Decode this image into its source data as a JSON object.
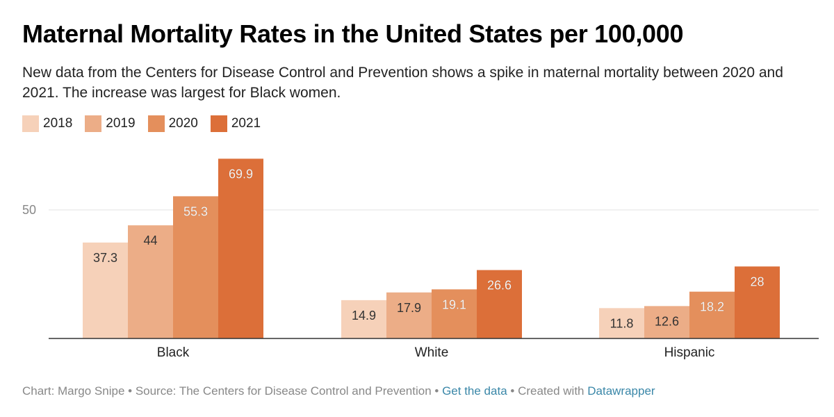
{
  "title": "Maternal Mortality Rates in the United States per 100,000",
  "subtitle": "New data from the Centers for Disease Control and Prevention shows a spike in maternal mortality between 2020 and 2021. The increase was largest for Black women.",
  "colors": {
    "2018": "#f6d1b9",
    "2019": "#ecad87",
    "2020": "#e48f5c",
    "2021": "#dc6f39"
  },
  "chart_data": {
    "type": "bar",
    "title": "Maternal Mortality Rates in the United States per 100,000",
    "xlabel": "",
    "ylabel": "",
    "categories": [
      "Black",
      "White",
      "Hispanic"
    ],
    "series": [
      {
        "name": "2018",
        "values": [
          37.3,
          14.9,
          11.8
        ]
      },
      {
        "name": "2019",
        "values": [
          44,
          17.9,
          12.6
        ]
      },
      {
        "name": "2020",
        "values": [
          55.3,
          19.1,
          18.2
        ]
      },
      {
        "name": "2021",
        "values": [
          69.9,
          26.6,
          28
        ]
      }
    ],
    "yticks": [
      50
    ],
    "ylim": [
      0,
      70
    ],
    "grid": true,
    "legend_position": "top-left"
  },
  "footer": {
    "chart_credit": "Chart: Margo Snipe",
    "separator": " • ",
    "source": "Source: The Centers for Disease Control and Prevention",
    "get_data_link": "Get the data",
    "created_with": "Created with ",
    "datawrapper_link": "Datawrapper"
  }
}
